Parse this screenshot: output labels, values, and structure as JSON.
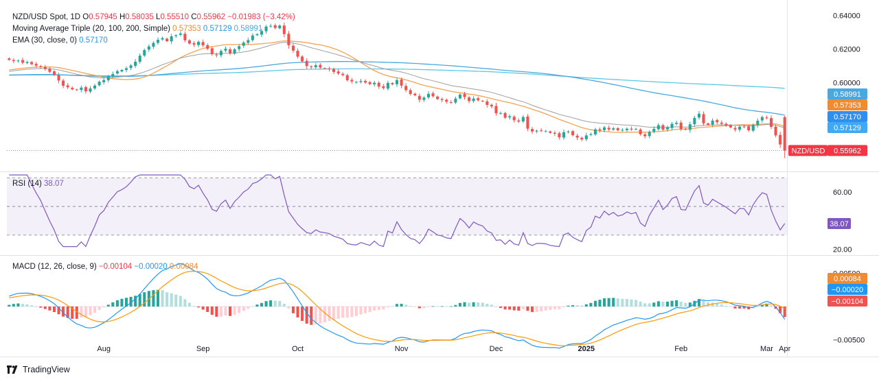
{
  "legend": {
    "symbol": "NZD/USD Spot, 1D",
    "open_label": "O",
    "open": "0.57945",
    "high_label": "H",
    "high": "0.58035",
    "low_label": "L",
    "low": "0.55510",
    "close_label": "C",
    "close": "0.55962",
    "change": "−0.01983 (−3.42%)",
    "ma_title": "Moving Average Triple (20, 100, 200, Simple)",
    "ma20": "0.57353",
    "ma100": "0.57129",
    "ma200": "0.58991",
    "ema_title": "EMA (30, close, 0)",
    "ema30": "0.57170"
  },
  "rsi_legend": {
    "title": "RSI (14)",
    "value": "38.07"
  },
  "macd_legend": {
    "title": "MACD (12, 26, close, 9)",
    "hist": "−0.00104",
    "macd": "−0.00020",
    "signal": "0.00084"
  },
  "footer": {
    "brand": "TradingView"
  },
  "colors": {
    "up": "#26a69a",
    "down": "#ef5350",
    "ma20": "#f7a14e",
    "ma100": "#4aa8e0",
    "ma200": "#5bc8e6",
    "ema": "#2962ff",
    "rsi": "#7e57c2",
    "macd": "#2196f3",
    "signal": "#ff9800",
    "hist_up": "#26a69a",
    "hist_down": "#ef5350",
    "price_tag": "#f23645"
  },
  "chart_data": [
    {
      "type": "candlestick",
      "title": "NZD/USD Spot, 1D",
      "price_axis_ticks": [
        "0.64000",
        "0.62000",
        "0.60000"
      ],
      "ylim": [
        0.548,
        0.645
      ],
      "time_axis_labels": [
        "Aug",
        "Sep",
        "Oct",
        "Nov",
        "Dec",
        "2025",
        "Feb",
        "Mar",
        "Apr"
      ],
      "last_price": "0.55962",
      "last_price_label": "NZD/USD",
      "axis_tags": [
        {
          "label": "0.58991",
          "series": "ma200",
          "value": 0.58991
        },
        {
          "label": "0.57353",
          "series": "ma20",
          "value": 0.57353
        },
        {
          "label": "0.57170",
          "series": "ema30",
          "value": 0.5717
        },
        {
          "label": "0.57129",
          "series": "ma100",
          "value": 0.57129
        }
      ],
      "closes": [
        0.6135,
        0.6128,
        0.6131,
        0.6118,
        0.6122,
        0.6109,
        0.6101,
        0.6093,
        0.608,
        0.6064,
        0.6046,
        0.6012,
        0.5981,
        0.5972,
        0.596,
        0.5955,
        0.597,
        0.5948,
        0.5965,
        0.5982,
        0.6005,
        0.6015,
        0.6036,
        0.6051,
        0.6068,
        0.6075,
        0.6085,
        0.6102,
        0.6124,
        0.616,
        0.6193,
        0.6215,
        0.6236,
        0.6254,
        0.6264,
        0.6246,
        0.6275,
        0.6281,
        0.6292,
        0.6251,
        0.6232,
        0.6226,
        0.6242,
        0.6221,
        0.6201,
        0.6169,
        0.6162,
        0.6188,
        0.6201,
        0.6173,
        0.6198,
        0.6216,
        0.6238,
        0.6252,
        0.628,
        0.6288,
        0.6306,
        0.6333,
        0.6337,
        0.6325,
        0.6339,
        0.6288,
        0.6222,
        0.619,
        0.6154,
        0.6126,
        0.6098,
        0.6091,
        0.6103,
        0.6089,
        0.6085,
        0.6079,
        0.6063,
        0.6054,
        0.6044,
        0.6014,
        0.6007,
        0.6004,
        0.6009,
        0.6,
        0.5991,
        0.5999,
        0.5976,
        0.5967,
        0.5998,
        0.5989,
        0.6015,
        0.5982,
        0.5955,
        0.5932,
        0.5924,
        0.5898,
        0.5911,
        0.5933,
        0.5919,
        0.5902,
        0.5896,
        0.5886,
        0.5882,
        0.5905,
        0.5929,
        0.5914,
        0.589,
        0.5905,
        0.5895,
        0.5889,
        0.5867,
        0.5858,
        0.5818,
        0.5819,
        0.5791,
        0.58,
        0.5776,
        0.5768,
        0.5795,
        0.5726,
        0.5709,
        0.5714,
        0.5714,
        0.5711,
        0.5701,
        0.5696,
        0.5675,
        0.5705,
        0.5709,
        0.5687,
        0.5673,
        0.5662,
        0.5686,
        0.5694,
        0.5722,
        0.5715,
        0.5734,
        0.5721,
        0.5728,
        0.5716,
        0.5719,
        0.5726,
        0.5721,
        0.5724,
        0.5693,
        0.5681,
        0.5706,
        0.5725,
        0.5747,
        0.572,
        0.5733,
        0.5755,
        0.5761,
        0.5723,
        0.5721,
        0.5752,
        0.579,
        0.5815,
        0.5758,
        0.5749,
        0.5774,
        0.5764,
        0.5755,
        0.5745,
        0.5733,
        0.5721,
        0.5738,
        0.5737,
        0.5716,
        0.5748,
        0.5773,
        0.5795,
        0.579,
        0.5737,
        0.5686,
        0.5632,
        0.5596
      ]
    },
    {
      "type": "line",
      "title": "RSI (14)",
      "ylim": [
        17,
        73
      ],
      "y_ticks": [
        "60.00",
        "20.00"
      ],
      "bands": [
        30,
        50,
        70
      ],
      "last_value": "38.07"
    },
    {
      "type": "bar+line",
      "title": "MACD (12, 26, close, 9)",
      "y_ticks": [
        "0.00500",
        "-0.00500"
      ],
      "ylim": [
        -0.0075,
        0.0075
      ],
      "last_values": {
        "hist": "-0.00104",
        "macd": "-0.00020",
        "signal": "0.00084"
      }
    }
  ]
}
